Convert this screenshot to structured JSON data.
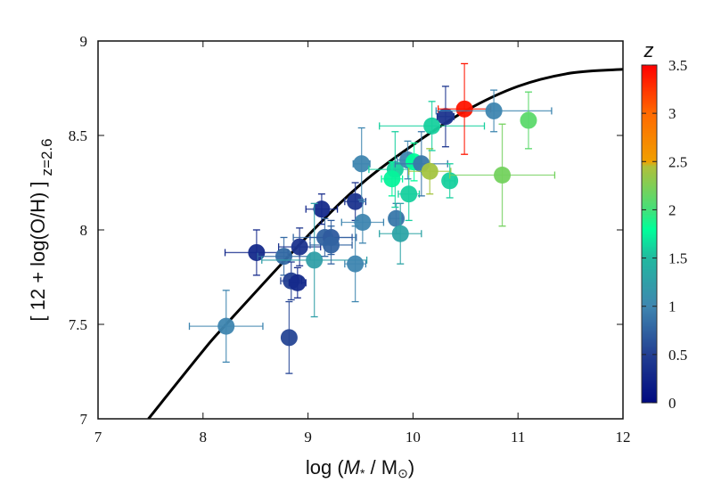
{
  "chart_data": {
    "type": "scatter",
    "xlabel": "log (M* / M⊙)",
    "xlabel_parts": {
      "pre": "log (",
      "m": "M",
      "star": "*",
      "mid": " / M",
      "sun": "⊙",
      "post": ")"
    },
    "ylabel": "[ 12 + log(O/H) ]",
    "ylabel_sub": "z=2.6",
    "xlim": [
      7,
      12
    ],
    "ylim": [
      7,
      9
    ],
    "xticks": [
      "7",
      "8",
      "9",
      "10",
      "11",
      "12"
    ],
    "yticks": [
      "7",
      "7.5",
      "8",
      "8.5",
      "9"
    ],
    "colorbar": {
      "title": "z",
      "range": [
        0,
        3.5
      ],
      "ticks": [
        "0",
        "0.5",
        "1",
        "1.5",
        "2",
        "2.5",
        "3",
        "3.5"
      ],
      "stops": [
        [
          0,
          "#000a80"
        ],
        [
          0.5,
          "#233f92"
        ],
        [
          1.0,
          "#3f86b0"
        ],
        [
          1.5,
          "#22b8a0"
        ],
        [
          1.8,
          "#00ff9a"
        ],
        [
          2.0,
          "#44e07a"
        ],
        [
          2.45,
          "#b0c03a"
        ],
        [
          2.5,
          "#f0a000"
        ],
        [
          3.0,
          "#ff6a00"
        ],
        [
          3.5,
          "#ff0000"
        ]
      ]
    },
    "fit_curve": {
      "x": [
        7.48,
        8.0,
        8.22,
        9.0,
        9.5,
        10.0,
        10.5,
        11.0,
        11.5,
        12.0
      ],
      "y": [
        7.0,
        7.36,
        7.5,
        7.97,
        8.24,
        8.45,
        8.63,
        8.76,
        8.83,
        8.85
      ]
    },
    "points": [
      {
        "x": 8.51,
        "y": 7.88,
        "z": 0.3,
        "xe": 0.3,
        "ye": 0.12
      },
      {
        "x": 8.22,
        "y": 7.49,
        "z": 1.0,
        "xe": 0.35,
        "ye": 0.19
      },
      {
        "x": 8.82,
        "y": 7.43,
        "z": 0.55,
        "xe": 0.0,
        "ye": 0.19
      },
      {
        "x": 8.77,
        "y": 7.86,
        "z": 0.8,
        "xe": 0.25,
        "ye": 0.1
      },
      {
        "x": 8.84,
        "y": 7.73,
        "z": 0.5,
        "xe": 0.1,
        "ye": 0.1
      },
      {
        "x": 8.9,
        "y": 7.72,
        "z": 0.3,
        "xe": 0.08,
        "ye": 0.08
      },
      {
        "x": 8.92,
        "y": 7.91,
        "z": 0.4,
        "xe": 0.2,
        "ye": 0.1
      },
      {
        "x": 9.13,
        "y": 8.11,
        "z": 0.3,
        "xe": 0.15,
        "ye": 0.08
      },
      {
        "x": 9.06,
        "y": 7.84,
        "z": 1.25,
        "xe": 0.5,
        "ye": 0.3
      },
      {
        "x": 9.16,
        "y": 7.96,
        "z": 0.75,
        "xe": 0.3,
        "ye": 0.1
      },
      {
        "x": 9.22,
        "y": 7.96,
        "z": 0.7,
        "xe": 0.2,
        "ye": 0.09
      },
      {
        "x": 9.22,
        "y": 7.92,
        "z": 0.75,
        "xe": 0.2,
        "ye": 0.1
      },
      {
        "x": 9.45,
        "y": 7.82,
        "z": 1.0,
        "xe": 0.1,
        "ye": 0.2
      },
      {
        "x": 9.45,
        "y": 8.15,
        "z": 0.4,
        "xe": 0.1,
        "ye": 0.1
      },
      {
        "x": 9.51,
        "y": 8.35,
        "z": 1.0,
        "xe": 0.08,
        "ye": 0.19
      },
      {
        "x": 9.52,
        "y": 8.04,
        "z": 1.0,
        "xe": 0.2,
        "ye": 0.11
      },
      {
        "x": 9.84,
        "y": 8.06,
        "z": 0.9,
        "xe": 0.06,
        "ye": 0.08
      },
      {
        "x": 9.88,
        "y": 7.98,
        "z": 1.3,
        "xe": 0.2,
        "ye": 0.16
      },
      {
        "x": 9.83,
        "y": 8.32,
        "z": 1.6,
        "xe": 0.25,
        "ye": 0.2
      },
      {
        "x": 9.8,
        "y": 8.27,
        "z": 1.75,
        "xe": 0.1,
        "ye": 0.09
      },
      {
        "x": 9.96,
        "y": 8.19,
        "z": 1.6,
        "xe": 0.1,
        "ye": 0.14
      },
      {
        "x": 9.95,
        "y": 8.37,
        "z": 1.0,
        "xe": 0.1,
        "ye": 0.1
      },
      {
        "x": 10.01,
        "y": 8.36,
        "z": 1.8,
        "xe": 0.07,
        "ye": 0.1
      },
      {
        "x": 10.08,
        "y": 8.35,
        "z": 0.9,
        "xe": 0.25,
        "ye": 0.17
      },
      {
        "x": 10.16,
        "y": 8.31,
        "z": 2.4,
        "xe": 0.2,
        "ye": 0.12
      },
      {
        "x": 10.35,
        "y": 8.26,
        "z": 1.6,
        "xe": 0.05,
        "ye": 0.09
      },
      {
        "x": 10.18,
        "y": 8.55,
        "z": 1.6,
        "xe": 0.5,
        "ye": 0.13
      },
      {
        "x": 10.31,
        "y": 8.6,
        "z": 0.4,
        "xe": 0.08,
        "ye": 0.16
      },
      {
        "x": 10.49,
        "y": 8.64,
        "z": 3.4,
        "xe": 0.25,
        "ye": 0.24
      },
      {
        "x": 10.77,
        "y": 8.63,
        "z": 1.0,
        "xe": 0.55,
        "ye": 0.11
      },
      {
        "x": 11.1,
        "y": 8.58,
        "z": 2.1,
        "xe": 0.0,
        "ye": 0.15
      },
      {
        "x": 10.85,
        "y": 8.29,
        "z": 2.2,
        "xe": 0.5,
        "ye": 0.27
      }
    ]
  }
}
